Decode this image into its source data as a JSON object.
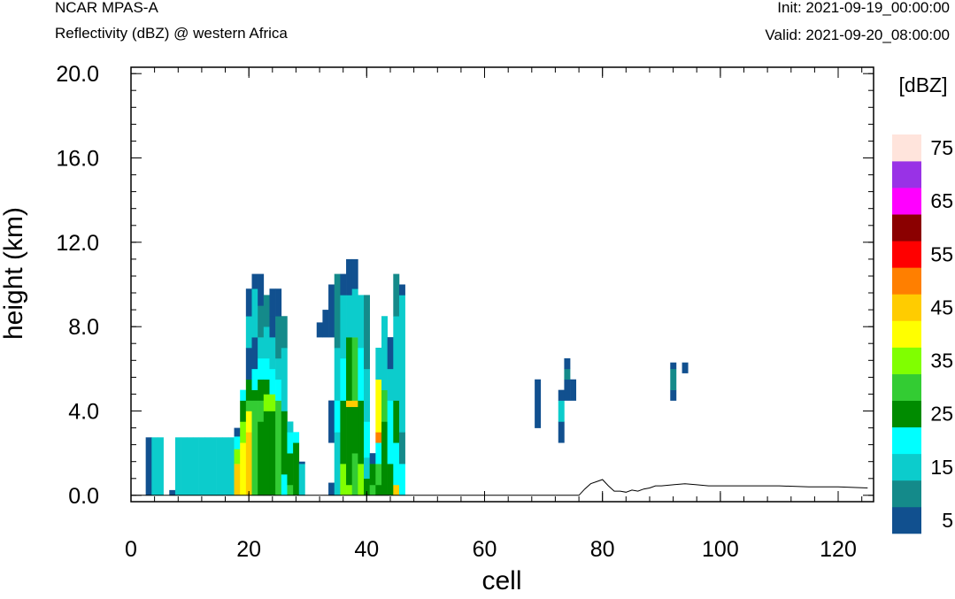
{
  "header": {
    "model": "NCAR MPAS-A",
    "field": "Reflectivity (dBZ) @ western Africa",
    "init": "Init: 2021-09-19_00:00:00",
    "valid": "Valid: 2021-09-20_08:00:00"
  },
  "chart_data": {
    "type": "heatmap",
    "title": "Reflectivity (dBZ) @ western Africa",
    "xlabel": "cell",
    "ylabel": "height (km)",
    "xlim": [
      0,
      126
    ],
    "ylim": [
      -0.3,
      20.3
    ],
    "x_ticks": [
      0,
      20,
      40,
      60,
      80,
      100,
      120
    ],
    "y_ticks": [
      "0.0",
      "4.0",
      "8.0",
      "12.0",
      "16.0",
      "20.0"
    ],
    "y_tick_values": [
      0,
      4,
      8,
      12,
      16,
      20
    ],
    "colorbar": {
      "title": "[dBZ]",
      "levels": [
        5,
        10,
        15,
        20,
        25,
        30,
        35,
        40,
        45,
        50,
        55,
        60,
        65,
        70,
        75
      ],
      "labels": [
        "5",
        "15",
        "25",
        "35",
        "45",
        "55",
        "65",
        "75"
      ],
      "colors": [
        "#11508f",
        "#148a8a",
        "#0ccccc",
        "#00ffff",
        "#008b00",
        "#33cc33",
        "#80ff00",
        "#ffff00",
        "#ffcc00",
        "#ff7f00",
        "#ff0000",
        "#8b0000",
        "#ff00ff",
        "#9932e6",
        "#ffe4dc"
      ]
    },
    "dz": 0.5,
    "columns": [
      {
        "x": 3,
        "segs": [
          [
            0,
            2.75,
            5
          ]
        ]
      },
      {
        "x": 4,
        "segs": [
          [
            0,
            2.75,
            15
          ]
        ]
      },
      {
        "x": 5,
        "segs": [
          [
            0,
            2.75,
            15
          ]
        ]
      },
      {
        "x": 7,
        "segs": [
          [
            0,
            0.25,
            5
          ]
        ]
      },
      {
        "x": 8,
        "segs": [
          [
            0,
            2.75,
            15
          ]
        ]
      },
      {
        "x": 9,
        "segs": [
          [
            0,
            2.75,
            15
          ]
        ]
      },
      {
        "x": 10,
        "segs": [
          [
            0,
            2.75,
            15
          ]
        ]
      },
      {
        "x": 11,
        "segs": [
          [
            0,
            2.75,
            15
          ]
        ]
      },
      {
        "x": 12,
        "segs": [
          [
            0,
            2.75,
            15
          ]
        ]
      },
      {
        "x": 13,
        "segs": [
          [
            0,
            2.75,
            15
          ]
        ]
      },
      {
        "x": 14,
        "segs": [
          [
            0,
            2.75,
            15
          ]
        ]
      },
      {
        "x": 15,
        "segs": [
          [
            0,
            2.75,
            15
          ]
        ]
      },
      {
        "x": 16,
        "segs": [
          [
            0,
            2.75,
            15
          ]
        ]
      },
      {
        "x": 17,
        "segs": [
          [
            0,
            2.75,
            15
          ]
        ]
      },
      {
        "x": 18,
        "segs": [
          [
            0,
            1.5,
            45
          ],
          [
            1.5,
            2.2,
            35
          ],
          [
            2.2,
            2.8,
            20
          ],
          [
            2.8,
            3.2,
            5
          ]
        ]
      },
      {
        "x": 19,
        "segs": [
          [
            0,
            2.5,
            40
          ],
          [
            2.5,
            3.5,
            35
          ],
          [
            3.5,
            4.5,
            25
          ],
          [
            4.5,
            5.0,
            20
          ]
        ]
      },
      {
        "x": 20,
        "segs": [
          [
            0,
            3.0,
            45
          ],
          [
            3.0,
            4.0,
            40
          ],
          [
            4.0,
            4.5,
            30
          ],
          [
            4.5,
            5.5,
            25
          ],
          [
            5.5,
            7.0,
            5
          ],
          [
            7.0,
            8.5,
            15
          ],
          [
            8.5,
            9.8,
            5
          ]
        ]
      },
      {
        "x": 21,
        "segs": [
          [
            0,
            4.5,
            30
          ],
          [
            4.5,
            5.0,
            25
          ],
          [
            5.0,
            6.0,
            20
          ],
          [
            6.0,
            7.5,
            5
          ],
          [
            7.5,
            9.8,
            15
          ],
          [
            9.8,
            10.5,
            5
          ]
        ]
      },
      {
        "x": 22,
        "segs": [
          [
            0,
            3.5,
            25
          ],
          [
            3.5,
            4.5,
            30
          ],
          [
            4.5,
            5.5,
            25
          ],
          [
            5.5,
            6.5,
            20
          ],
          [
            6.5,
            7.5,
            15
          ],
          [
            7.5,
            9.0,
            10
          ],
          [
            9.0,
            10.5,
            5
          ]
        ]
      },
      {
        "x": 23,
        "segs": [
          [
            0,
            4.0,
            25
          ],
          [
            4.0,
            4.8,
            35
          ],
          [
            4.8,
            5.5,
            25
          ],
          [
            5.5,
            6.5,
            20
          ],
          [
            6.5,
            8.0,
            15
          ],
          [
            8.0,
            9.5,
            10
          ]
        ]
      },
      {
        "x": 24,
        "segs": [
          [
            0,
            4.0,
            25
          ],
          [
            4.0,
            4.8,
            35
          ],
          [
            4.8,
            6.0,
            20
          ],
          [
            6.0,
            7.5,
            15
          ],
          [
            7.5,
            8.5,
            5
          ],
          [
            8.5,
            9.8,
            5
          ]
        ]
      },
      {
        "x": 25,
        "segs": [
          [
            0,
            4.5,
            30
          ],
          [
            4.5,
            5.5,
            20
          ],
          [
            5.5,
            6.5,
            15
          ],
          [
            6.5,
            8.5,
            10
          ],
          [
            8.5,
            9.8,
            5
          ]
        ]
      },
      {
        "x": 26,
        "segs": [
          [
            0,
            1.0,
            20
          ],
          [
            1.0,
            4.0,
            25
          ],
          [
            4.0,
            5.5,
            15
          ],
          [
            5.5,
            7.0,
            15
          ],
          [
            7.0,
            8.5,
            10
          ]
        ]
      },
      {
        "x": 27,
        "segs": [
          [
            0,
            0.5,
            30
          ],
          [
            0.5,
            2.0,
            25
          ],
          [
            2.0,
            3.0,
            20
          ],
          [
            3.0,
            3.5,
            15
          ]
        ]
      },
      {
        "x": 28,
        "segs": [
          [
            0,
            2.5,
            25
          ],
          [
            2.5,
            3.0,
            20
          ]
        ]
      },
      {
        "x": 29,
        "segs": [
          [
            0,
            1.5,
            15
          ],
          [
            1.5,
            1.6,
            5
          ]
        ]
      },
      {
        "x": 32,
        "segs": [
          [
            7.5,
            8.2,
            5
          ]
        ]
      },
      {
        "x": 33,
        "segs": [
          [
            7.5,
            8.8,
            5
          ]
        ]
      },
      {
        "x": 34,
        "segs": [
          [
            0,
            0.6,
            5
          ],
          [
            2.5,
            4.5,
            5
          ],
          [
            7.5,
            10.0,
            5
          ]
        ]
      },
      {
        "x": 35,
        "segs": [
          [
            0,
            3.0,
            15
          ],
          [
            3.0,
            4.5,
            20
          ],
          [
            4.5,
            7.0,
            15
          ],
          [
            7.0,
            10.5,
            10
          ]
        ]
      },
      {
        "x": 36,
        "segs": [
          [
            0,
            1.5,
            35
          ],
          [
            1.5,
            4.5,
            25
          ],
          [
            4.5,
            6.5,
            20
          ],
          [
            6.5,
            9.5,
            15
          ],
          [
            9.5,
            10.5,
            5
          ]
        ]
      },
      {
        "x": 37,
        "segs": [
          [
            0,
            0.5,
            35
          ],
          [
            0.5,
            4.2,
            25
          ],
          [
            4.2,
            4.5,
            45
          ],
          [
            4.5,
            7.5,
            25
          ],
          [
            7.5,
            9.5,
            15
          ],
          [
            9.5,
            11.2,
            5
          ]
        ]
      },
      {
        "x": 38,
        "segs": [
          [
            0,
            2.0,
            30
          ],
          [
            2.0,
            4.2,
            25
          ],
          [
            4.2,
            4.5,
            45
          ],
          [
            4.5,
            7.5,
            30
          ],
          [
            7.5,
            9.8,
            15
          ],
          [
            9.8,
            11.2,
            5
          ]
        ]
      },
      {
        "x": 39,
        "segs": [
          [
            0,
            1.5,
            35
          ],
          [
            1.5,
            4.5,
            25
          ],
          [
            4.5,
            7.0,
            20
          ],
          [
            7.0,
            9.5,
            15
          ]
        ]
      },
      {
        "x": 40,
        "segs": [
          [
            0,
            0.8,
            25
          ],
          [
            0.8,
            1.8,
            15
          ],
          [
            1.8,
            3.5,
            20
          ],
          [
            3.5,
            4.5,
            15
          ],
          [
            4.5,
            6.0,
            15
          ],
          [
            6.0,
            9.5,
            10
          ]
        ]
      },
      {
        "x": 41,
        "segs": [
          [
            0,
            0.5,
            30
          ],
          [
            0.5,
            1.5,
            25
          ],
          [
            1.5,
            2.0,
            5
          ]
        ]
      },
      {
        "x": 42,
        "segs": [
          [
            0,
            0.5,
            25
          ],
          [
            0.5,
            1.5,
            30
          ],
          [
            1.5,
            2.5,
            20
          ],
          [
            2.5,
            3.0,
            50
          ],
          [
            3.0,
            5.5,
            40
          ],
          [
            5.5,
            7.0,
            15
          ]
        ]
      },
      {
        "x": 43,
        "segs": [
          [
            0,
            1.0,
            25
          ],
          [
            1.0,
            3.5,
            25
          ],
          [
            3.5,
            5.0,
            30
          ],
          [
            5.0,
            8.5,
            15
          ]
        ]
      },
      {
        "x": 44,
        "segs": [
          [
            0,
            1.5,
            25
          ],
          [
            1.5,
            4.5,
            20
          ],
          [
            4.5,
            6.0,
            15
          ],
          [
            6.0,
            7.5,
            5
          ]
        ]
      },
      {
        "x": 45,
        "segs": [
          [
            0,
            0.5,
            45
          ],
          [
            0.5,
            2.5,
            20
          ],
          [
            2.5,
            4.5,
            25
          ],
          [
            4.5,
            8.5,
            15
          ],
          [
            8.5,
            10.5,
            10
          ]
        ]
      },
      {
        "x": 46,
        "segs": [
          [
            0,
            1.5,
            20
          ],
          [
            1.5,
            3.0,
            10
          ],
          [
            3.0,
            5.5,
            15
          ],
          [
            5.5,
            9.5,
            15
          ],
          [
            9.5,
            10.0,
            5
          ]
        ]
      },
      {
        "x": 69,
        "segs": [
          [
            3.2,
            5.5,
            5
          ]
        ]
      },
      {
        "x": 73,
        "segs": [
          [
            2.5,
            3.5,
            5
          ],
          [
            3.5,
            4.5,
            15
          ],
          [
            4.5,
            5.0,
            5
          ]
        ]
      },
      {
        "x": 74,
        "segs": [
          [
            4.5,
            5.5,
            5
          ],
          [
            5.5,
            6.0,
            10
          ],
          [
            6.0,
            6.5,
            5
          ]
        ]
      },
      {
        "x": 75,
        "segs": [
          [
            4.5,
            5.5,
            5
          ]
        ]
      },
      {
        "x": 92,
        "segs": [
          [
            4.5,
            5.0,
            5
          ],
          [
            5.0,
            6.0,
            10
          ],
          [
            6.0,
            6.3,
            5
          ]
        ]
      },
      {
        "x": 94,
        "segs": [
          [
            5.8,
            6.3,
            5
          ]
        ]
      }
    ],
    "terrain": [
      [
        0,
        0
      ],
      [
        76,
        0
      ],
      [
        77,
        0.3
      ],
      [
        78,
        0.55
      ],
      [
        79,
        0.65
      ],
      [
        80,
        0.75
      ],
      [
        81,
        0.45
      ],
      [
        82,
        0.2
      ],
      [
        83,
        0.2
      ],
      [
        84,
        0.15
      ],
      [
        85,
        0.25
      ],
      [
        86,
        0.2
      ],
      [
        87,
        0.3
      ],
      [
        88,
        0.35
      ],
      [
        89,
        0.45
      ],
      [
        90,
        0.45
      ],
      [
        92,
        0.5
      ],
      [
        94,
        0.55
      ],
      [
        96,
        0.5
      ],
      [
        98,
        0.45
      ],
      [
        100,
        0.45
      ],
      [
        105,
        0.45
      ],
      [
        110,
        0.45
      ],
      [
        115,
        0.4
      ],
      [
        120,
        0.4
      ],
      [
        125,
        0.35
      ]
    ]
  }
}
